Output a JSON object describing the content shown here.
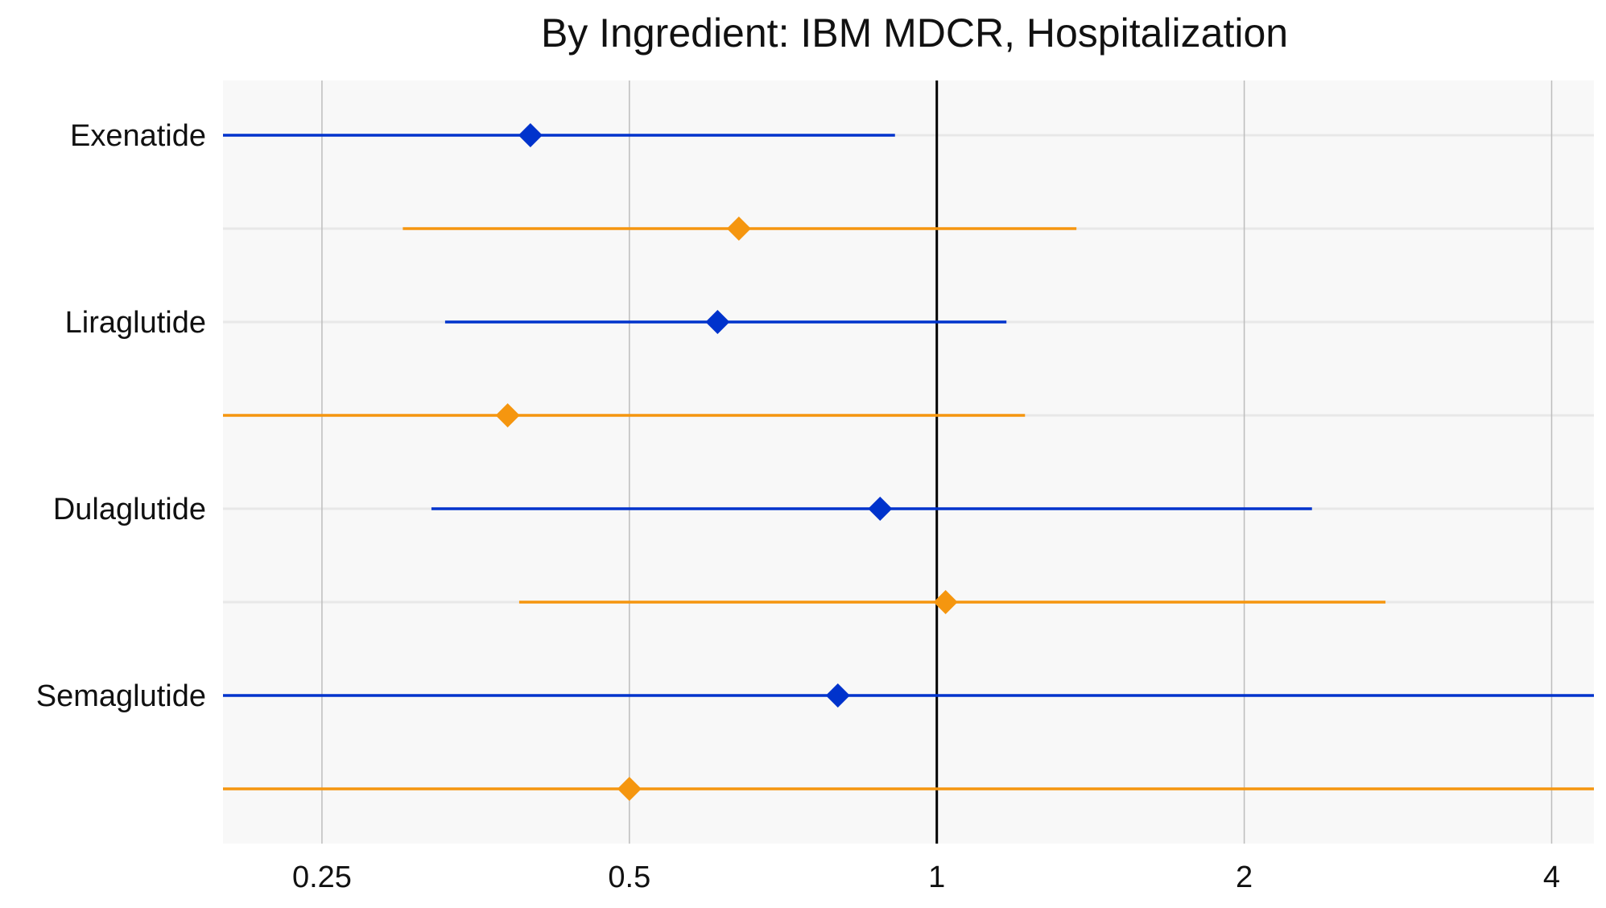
{
  "chart_data": {
    "type": "forest",
    "title": "By Ingredient: IBM MDCR, Hospitalization",
    "xlabel": "",
    "ylabel": "",
    "x_scale": "log2",
    "xlim": [
      0.2,
      4.4
    ],
    "x_ticks": [
      0.25,
      0.5,
      1,
      2,
      4
    ],
    "x_tick_labels": [
      "0.25",
      "0.5",
      "1",
      "2",
      "4"
    ],
    "reference_line": 1,
    "grid": true,
    "legend": "none",
    "categories": [
      "Exenatide",
      "Liraglutide",
      "Dulaglutide",
      "Semaglutide"
    ],
    "colors": {
      "blue": "#0033CC",
      "orange": "#F5960F",
      "panel": "#F8F8F8",
      "gridline": "#BDBDBD",
      "rowline": "#E8E8E8"
    },
    "estimates": [
      {
        "category": "Exenatide",
        "color": "blue",
        "point": 0.4,
        "lower": 0.2,
        "upper": 0.91
      },
      {
        "category": "Exenatide",
        "color": "orange",
        "point": 0.64,
        "lower": 0.3,
        "upper": 1.37
      },
      {
        "category": "Liraglutide",
        "color": "blue",
        "point": 0.61,
        "lower": 0.33,
        "upper": 1.17
      },
      {
        "category": "Liraglutide",
        "color": "orange",
        "point": 0.38,
        "lower": 0.2,
        "upper": 1.22
      },
      {
        "category": "Dulaglutide",
        "color": "blue",
        "point": 0.88,
        "lower": 0.32,
        "upper": 2.33
      },
      {
        "category": "Dulaglutide",
        "color": "orange",
        "point": 1.02,
        "lower": 0.39,
        "upper": 2.75
      },
      {
        "category": "Semaglutide",
        "color": "blue",
        "point": 0.8,
        "lower": 0.2,
        "upper": 4.4
      },
      {
        "category": "Semaglutide",
        "color": "orange",
        "point": 0.5,
        "lower": 0.2,
        "upper": 4.4
      }
    ]
  }
}
